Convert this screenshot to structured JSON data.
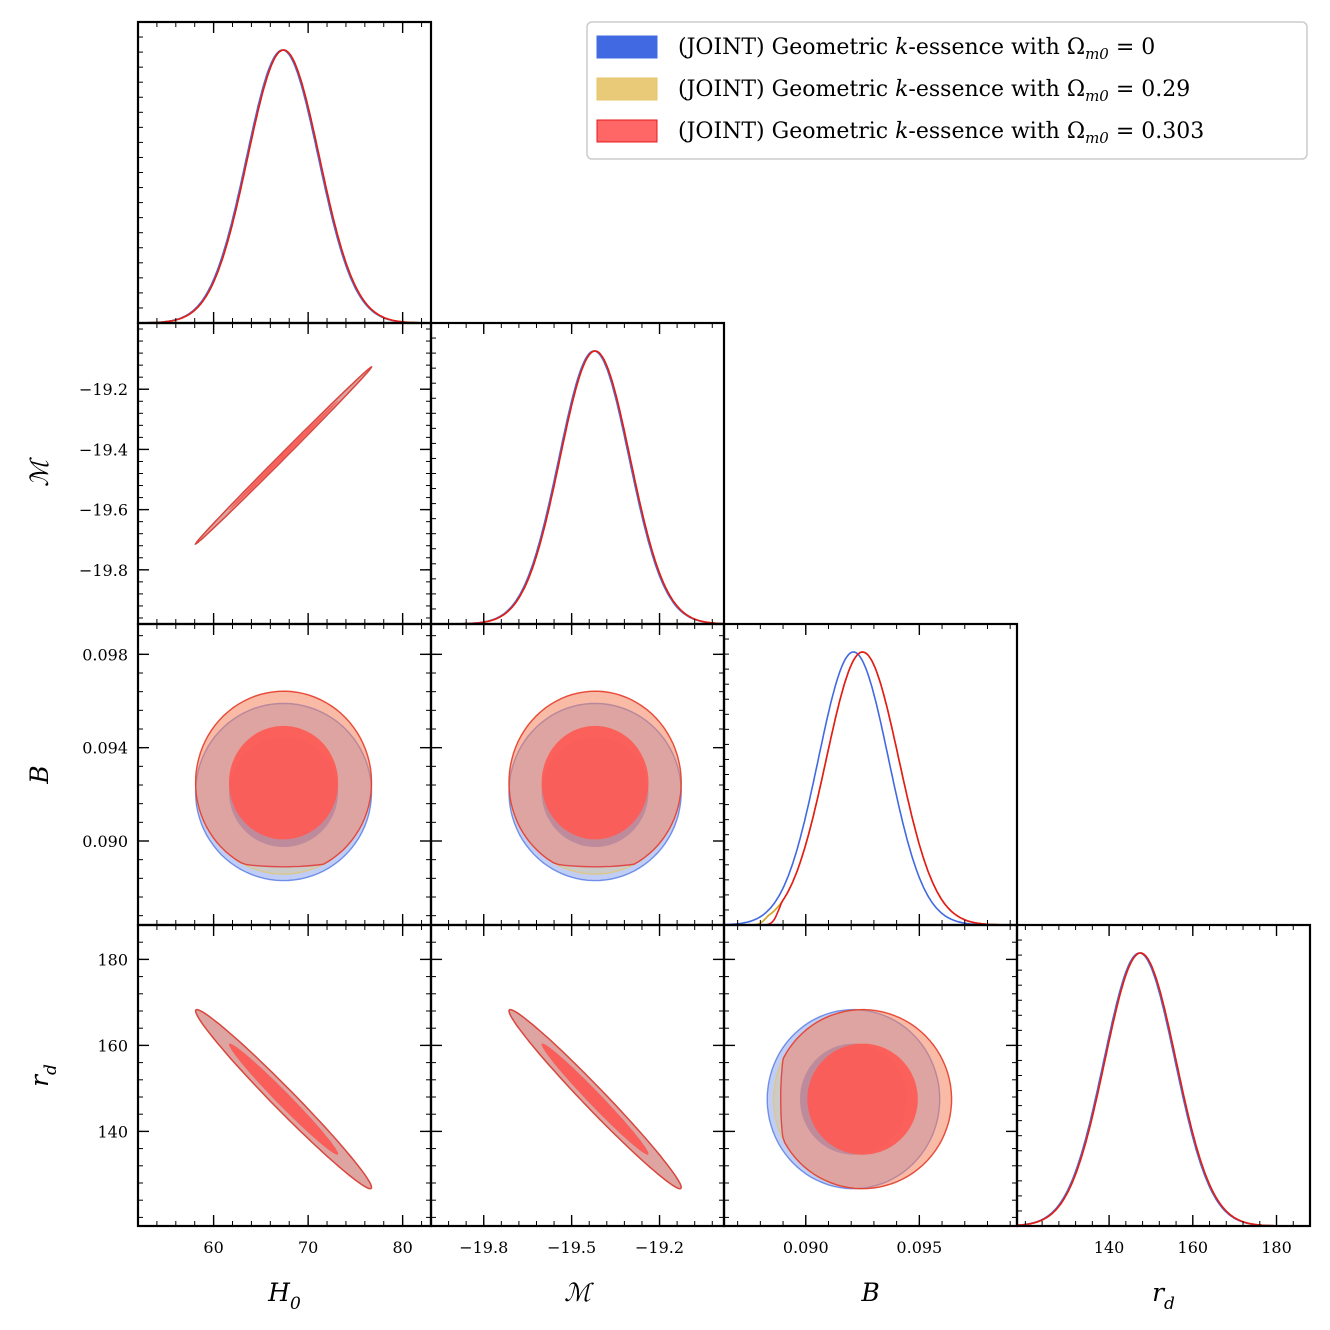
{
  "chart_data": {
    "type": "corner-plot",
    "title": "",
    "parameters": [
      {
        "key": "H0",
        "label": "H₀",
        "range": [
          52,
          83
        ],
        "ticks": [
          60,
          70,
          80
        ],
        "tick_labels": [
          "60",
          "70",
          "80"
        ],
        "mean": 67.4,
        "sigma": 3.8
      },
      {
        "key": "M",
        "label": "ℳ",
        "range": [
          -19.98,
          -18.98
        ],
        "ticks": [
          -19.8,
          -19.5,
          -19.2
        ],
        "tick_labels": [
          "−19.8",
          "−19.5",
          "−19.2"
        ],
        "ticks_y": [
          -19.8,
          -19.6,
          -19.4,
          -19.2
        ],
        "tick_labels_y": [
          "−19.8",
          "−19.6",
          "−19.4",
          "−19.2"
        ],
        "mean": -19.42,
        "sigma": 0.12
      },
      {
        "key": "B",
        "label": "B",
        "range": [
          0.0864,
          0.0993
        ],
        "ticks": [
          0.09,
          0.095
        ],
        "tick_labels": [
          "0.090",
          "0.095"
        ],
        "ticks_y": [
          0.09,
          0.094,
          0.098
        ],
        "tick_labels_y": [
          "0.090",
          "0.094",
          "0.098"
        ],
        "mean": 0.0924,
        "sigma": 0.0016
      },
      {
        "key": "rd",
        "label": "r_d",
        "range": [
          118,
          188
        ],
        "ticks": [
          140,
          160,
          180
        ],
        "tick_labels": [
          "140",
          "160",
          "180"
        ],
        "mean": 147.5,
        "sigma": 8.5
      }
    ],
    "correlations": {
      "H0-M": 0.999,
      "H0-rd": -0.985,
      "M-rd": -0.985,
      "H0-B": 0.0,
      "M-B": 0.0,
      "B-rd": 0.0
    },
    "series": [
      {
        "name": "(JOINT) Geometric k-essence with Ωm0 = 0",
        "legend_prefix": "(JOINT) Geometric ",
        "legend_k": "k",
        "legend_mid": "-essence with Ω",
        "legend_sub": "m0",
        "legend_value": " = 0",
        "color": "#4169e1",
        "B_mean": 0.0921,
        "B_sigma": 0.00155,
        "B_lower_cut": null
      },
      {
        "name": "(JOINT) Geometric k-essence with Ωm0 = 0.29",
        "legend_prefix": "(JOINT) Geometric ",
        "legend_k": "k",
        "legend_mid": "-essence with Ω",
        "legend_sub": "m0",
        "legend_value": " = 0.29",
        "color": "#e6c46a",
        "B_mean": 0.0925,
        "B_sigma": 0.0016,
        "B_lower_cut": 0.0884
      },
      {
        "name": "(JOINT) Geometric k-essence with Ωm0 = 0.303",
        "legend_prefix": "(JOINT) Geometric ",
        "legend_k": "k",
        "legend_mid": "-essence with Ω",
        "legend_sub": "m0",
        "legend_value": " = 0.303",
        "color": "#ff5555",
        "line_color": "#e41a1c",
        "B_mean": 0.0925,
        "B_sigma": 0.0016,
        "B_lower_cut": 0.089
      }
    ],
    "contour_levels": [
      "68%",
      "95%"
    ],
    "legend_position": "top-right"
  }
}
